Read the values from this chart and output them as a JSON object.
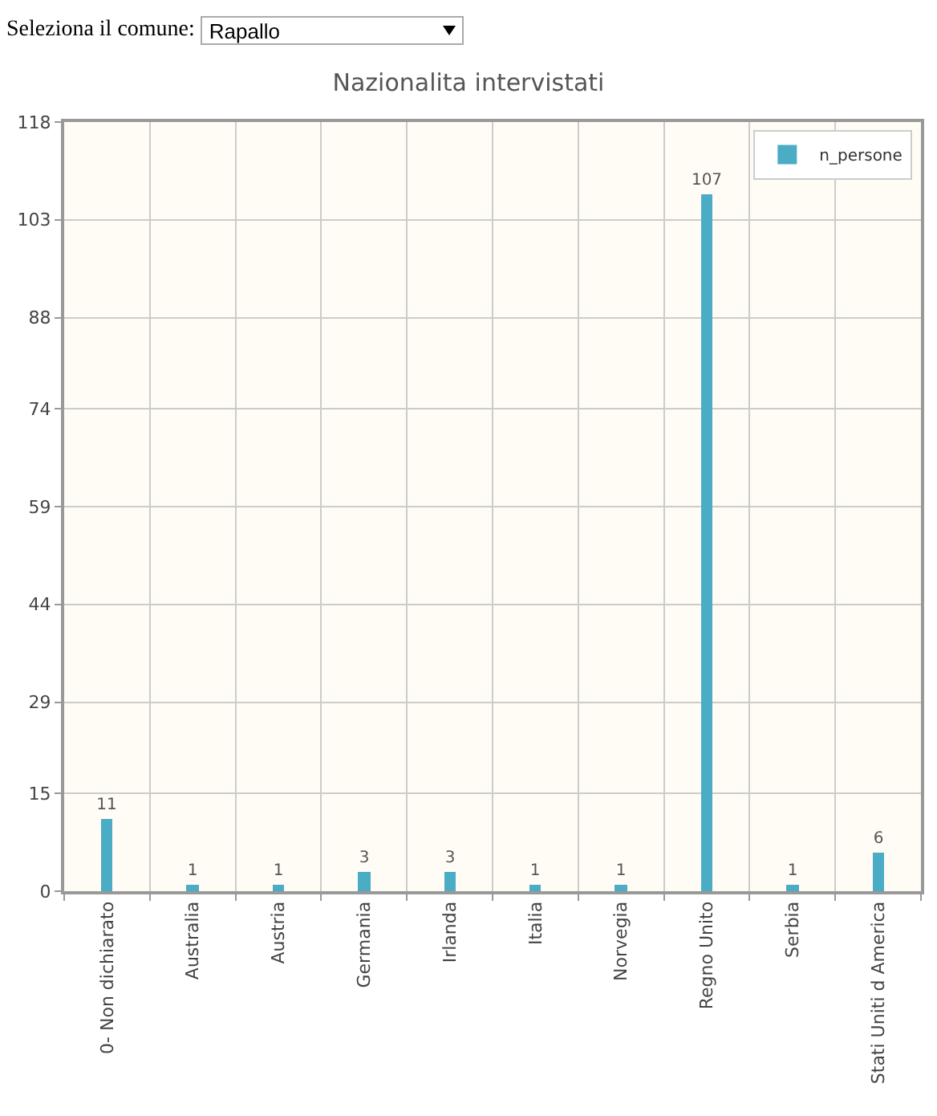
{
  "chart_data": {
    "type": "bar",
    "title": "Nazionalita intervistati",
    "annotations": [
      "Seleziona il comune:",
      "Rapallo"
    ],
    "categories": [
      "0- Non dichiarato",
      "Australia",
      "Austria",
      "Germania",
      "Irlanda",
      "Italia",
      "Norvegia",
      "Regno Unito",
      "Serbia",
      "Stati Uniti d America"
    ],
    "series": [
      {
        "name": "n_persone",
        "color": "#4bacc6",
        "values": [
          11,
          1,
          1,
          3,
          3,
          1,
          1,
          107,
          1,
          6
        ]
      }
    ],
    "ylim": [
      0,
      118
    ],
    "yticks": [
      0,
      15,
      29,
      44,
      59,
      74,
      88,
      103,
      118
    ],
    "grid": true,
    "legend": "top right",
    "data_labels": true
  }
}
